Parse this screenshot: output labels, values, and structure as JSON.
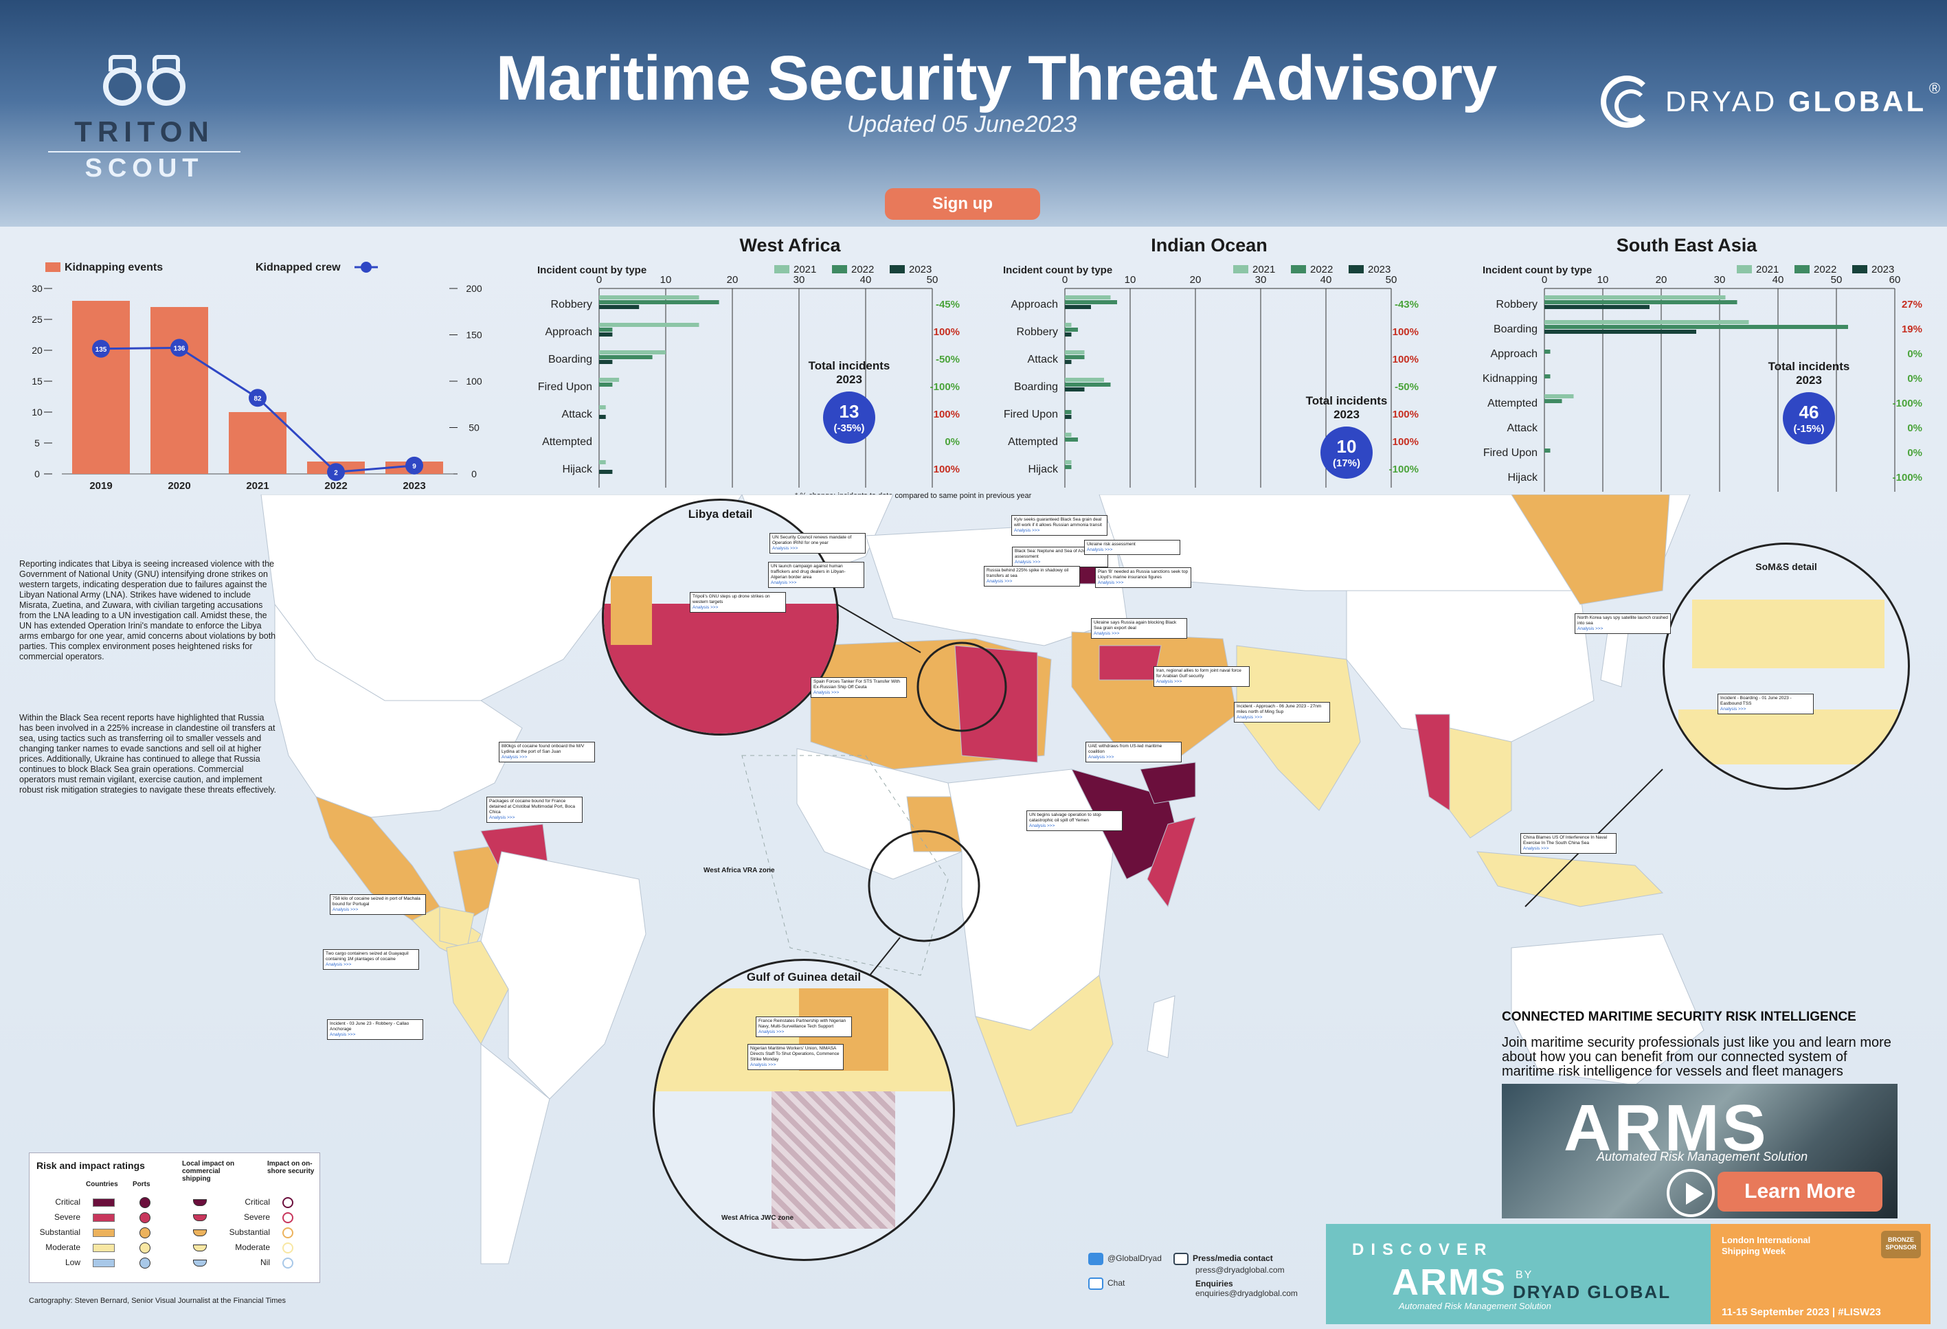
{
  "header": {
    "title": "Maritime Security Threat Advisory",
    "subtitle": "Updated 05 June2023",
    "signup_label": "Sign up",
    "left_logo_line1": "TRITON",
    "left_logo_line2": "SCOUT",
    "right_logo_light": "DRYAD ",
    "right_logo_bold": "GLOBAL",
    "right_logo_reg": "®"
  },
  "kidnap_chart": {
    "legend_bar": "Kidnapping events",
    "legend_line": "Kidnapped crew",
    "years": [
      "2019",
      "2020",
      "2021",
      "2022",
      "2023"
    ],
    "events": [
      28,
      27,
      10,
      2,
      2
    ],
    "crew": [
      135,
      136,
      82,
      2,
      9
    ],
    "left_ticks": [
      "30",
      "25",
      "20",
      "15",
      "10",
      "5",
      "0"
    ],
    "right_ticks": [
      "200",
      "150",
      "100",
      "50",
      "0"
    ],
    "colors": {
      "bar": "#e8795a",
      "line": "#2f47c4"
    }
  },
  "chart_data": [
    {
      "type": "bar",
      "title": "West Africa",
      "subtitle": "Incident count by type",
      "categories": [
        "Robbery",
        "Approach",
        "Boarding",
        "Fired Upon",
        "Attack",
        "Attempted",
        "Hijack"
      ],
      "series": [
        {
          "name": "2021",
          "values": [
            15,
            15,
            10,
            3,
            1,
            0,
            1
          ]
        },
        {
          "name": "2022",
          "values": [
            18,
            2,
            8,
            2,
            0,
            0,
            0
          ]
        },
        {
          "name": "2023",
          "values": [
            6,
            2,
            2,
            0,
            1,
            0,
            2
          ]
        }
      ],
      "xticks": [
        "0",
        "10",
        "20",
        "30",
        "40",
        "50"
      ],
      "xlim": [
        0,
        50
      ],
      "changes": [
        "-45%",
        "100%",
        "-50%",
        "-100%",
        "100%",
        "0%",
        "100%"
      ],
      "total_label": "Total incidents 2023",
      "total": "13",
      "total_change": "(-35%)",
      "note": "* % change: incidents to date compared to same point in previous year"
    },
    {
      "type": "bar",
      "title": "Indian Ocean",
      "subtitle": "Incident count by type",
      "categories": [
        "Approach",
        "Robbery",
        "Attack",
        "Boarding",
        "Fired Upon",
        "Attempted",
        "Hijack"
      ],
      "series": [
        {
          "name": "2021",
          "values": [
            7,
            1,
            3,
            6,
            0,
            1,
            1
          ]
        },
        {
          "name": "2022",
          "values": [
            8,
            2,
            3,
            7,
            1,
            2,
            1
          ]
        },
        {
          "name": "2023",
          "values": [
            4,
            1,
            1,
            3,
            1,
            0,
            0
          ]
        }
      ],
      "xticks": [
        "0",
        "10",
        "20",
        "30",
        "40",
        "50"
      ],
      "xlim": [
        0,
        50
      ],
      "changes": [
        "-43%",
        "100%",
        "100%",
        "-50%",
        "100%",
        "100%",
        "-100%"
      ],
      "total_label": "Total incidents 2023",
      "total": "10",
      "total_change": "(17%)"
    },
    {
      "type": "bar",
      "title": "South East Asia",
      "subtitle": "Incident count by type",
      "categories": [
        "Robbery",
        "Boarding",
        "Approach",
        "Kidnapping",
        "Attempted",
        "Attack",
        "Fired Upon",
        "Hijack"
      ],
      "series": [
        {
          "name": "2021",
          "values": [
            31,
            35,
            0,
            0,
            5,
            0,
            0,
            0
          ]
        },
        {
          "name": "2022",
          "values": [
            33,
            52,
            1,
            1,
            3,
            0,
            1,
            0
          ]
        },
        {
          "name": "2023",
          "values": [
            18,
            26,
            0,
            0,
            0,
            0,
            0,
            0
          ]
        }
      ],
      "xticks": [
        "0",
        "10",
        "20",
        "30",
        "40",
        "50",
        "60"
      ],
      "xlim": [
        0,
        60
      ],
      "changes": [
        "27%",
        "19%",
        "0%",
        "0%",
        "-100%",
        "0%",
        "0%",
        "-100%"
      ],
      "total_label": "Total incidents 2023",
      "total": "46",
      "total_change": "(-15%)"
    }
  ],
  "series_colors": {
    "2021": "#8cc5a6",
    "2022": "#3f8a62",
    "2023": "#17423a"
  },
  "narrative": {
    "p1": "Reporting indicates that Libya is seeing increased violence with the Government of National Unity (GNU) intensifying drone strikes on western targets, indicating desperation due to failures against the Libyan National Army (LNA). Strikes have widened to include Misrata, Zuetina, and Zuwara, with civilian targeting accusations from the LNA leading to a UN investigation call. Amidst these, the UN has extended Operation Irini's mandate to enforce the Libya arms embargo for one year, amid concerns about violations by both parties. This complex environment poses heightened risks for commercial operators.",
    "p2": "Within the Black Sea recent reports have highlighted that Russia has been involved in a 225% increase in clandestine oil transfers at sea, using tactics such as transferring oil to smaller vessels and changing tanker names to evade sanctions and sell oil at higher prices. Additionally, Ukraine has continued to allege that Russia continues to block Black Sea grain operations. Commercial operators must remain vigilant, exercise caution, and implement robust risk mitigation strategies to navigate these threats effectively."
  },
  "map": {
    "libya_title": "Libya detail",
    "gog_title": "Gulf of Guinea detail",
    "soms_title": "SoM&S detail",
    "vra_label": "West Africa VRA zone",
    "jwc_label": "West Africa JWC zone",
    "callouts": [
      "UN Security Council renews mandate of Operation IRINI for one year",
      "UN launch campaign against human traffickers and drug dealers in Libyan-Algerian border area",
      "Tripoli's GNU steps up drone strikes on western targets",
      "Spain Forces Tanker For STS Transfer With Ex-Russian Ship Off Ceuta",
      "Kyiv seeks guaranteed Black Sea grain deal will work if it allows Russian ammonia transit",
      "Black Sea: Neptune and Sea of Azov risk assessment",
      "Ukraine risk assessment",
      "Russia behind 225% spike in shadowy oil transfers at sea",
      "Plan 'B' needed as Russia sanctions seek top Lloyd's marine insurance figures",
      "Ukraine says Russia again blocking Black Sea grain export deal",
      "Iran, regional allies to form joint naval force for Arabian Gulf security",
      "Incident - Approach - 06 June 2023 - 27nm miles north of Ming Sup",
      "UAE withdraws from US-led maritime coalition",
      "UN begins salvage operation to stop catastrophic oil spill off Yemen",
      "North Korea says spy satellite launch crashed into sea",
      "China Blames US Of Interference In Naval Exercise In The South China Sea",
      "Incident - Boarding - 01 June 2023 - Eastbound TSS",
      "880kgs of cocaine found onboard the M/V Lydina at the port of San Juan",
      "Packages of cocaine bound for France detained at Cristóbal Multimodal Port, Boca Chica",
      "758 kilo of cocaine seized in port of Machala bound for Portugal",
      "Two cargo containers seized at Guayaquil containing 1M plantages of cocaine",
      "Incident - 03 June 23 - Robbery - Callao Anchorage",
      "France Reinstates Partnership with Nigerian Navy, Multi-Surveillance Tech Support",
      "Nigerian Maritime Workers' Union, NIMASA Directs Staff To Shut Operations, Commence Strike Monday"
    ],
    "readmore": "Analysis >>>"
  },
  "legend": {
    "title": "Risk and impact ratings",
    "col_countries": "Countries",
    "col_ports": "Ports",
    "col_local": "Local impact on commercial shipping",
    "col_onshore": "Impact on on-shore security",
    "levels": [
      "Critical",
      "Severe",
      "Substantial",
      "Moderate",
      "Low"
    ],
    "impact_levels": [
      "Critical",
      "Severe",
      "Substantial",
      "Moderate",
      "Nil"
    ],
    "level_colors": [
      "#6b0f3c",
      "#c8365c",
      "#ecb25c",
      "#f8e7a3",
      "#a8c8e8"
    ]
  },
  "credit": "Cartography: Steven Bernard, Senior Visual Journalist at the Financial Times",
  "promo": {
    "heading": "CONNECTED MARITIME SECURITY RISK INTELLIGENCE",
    "body": "Join maritime security professionals just like you and learn more about how you can benefit from our connected system of maritime risk intelligence for vessels and fleet managers",
    "arms": "ARMS",
    "arms_sub": "Automated Risk Management Solution",
    "learn_more": "Learn More",
    "discover": "DISCOVER",
    "disc_arms": "ARMS",
    "disc_by": "BY",
    "disc_dryad": "DRYAD GLOBAL",
    "disc_sub": "Automated Risk Management Solution",
    "lisw_title": "London International Shipping Week",
    "lisw_dates": "11-15 September 2023  |  #LISW23",
    "bronze": "BRONZE SPONSOR"
  },
  "contact": {
    "twitter": "@GlobalDryad",
    "chat": "Chat",
    "press_label": "Press/media contact",
    "press_email": "press@dryadglobal.com",
    "enq_label": "Enquiries",
    "enq_email": "enquiries@dryadglobal.com"
  }
}
